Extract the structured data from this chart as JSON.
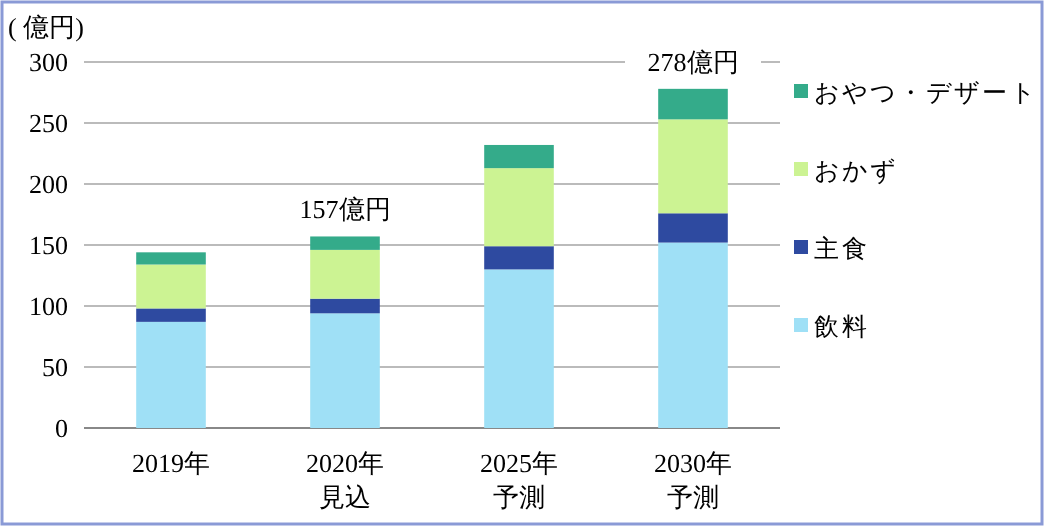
{
  "chart_data": {
    "type": "bar",
    "stacked": true,
    "ylabel": "( 億円)",
    "categories": [
      "2019年",
      "2020年見込",
      "2025年予測",
      "2030年予測"
    ],
    "series": [
      {
        "name": "飲料",
        "color": "#9fe0f6",
        "values": [
          87,
          94,
          130,
          152
        ]
      },
      {
        "name": "主食",
        "color": "#2e4aa0",
        "values": [
          11,
          12,
          19,
          24
        ]
      },
      {
        "name": "おかず",
        "color": "#ccf393",
        "values": [
          36,
          40,
          64,
          77
        ]
      },
      {
        "name": "おやつ・デザート",
        "color": "#34ab8a",
        "values": [
          10,
          11,
          19,
          25
        ]
      }
    ],
    "totals": [
      null,
      "157億円",
      null,
      "278億円"
    ],
    "ylim": [
      0,
      300
    ],
    "yticks": [
      0,
      50,
      100,
      150,
      200,
      250,
      300
    ],
    "grid": "y",
    "legend": "right"
  }
}
